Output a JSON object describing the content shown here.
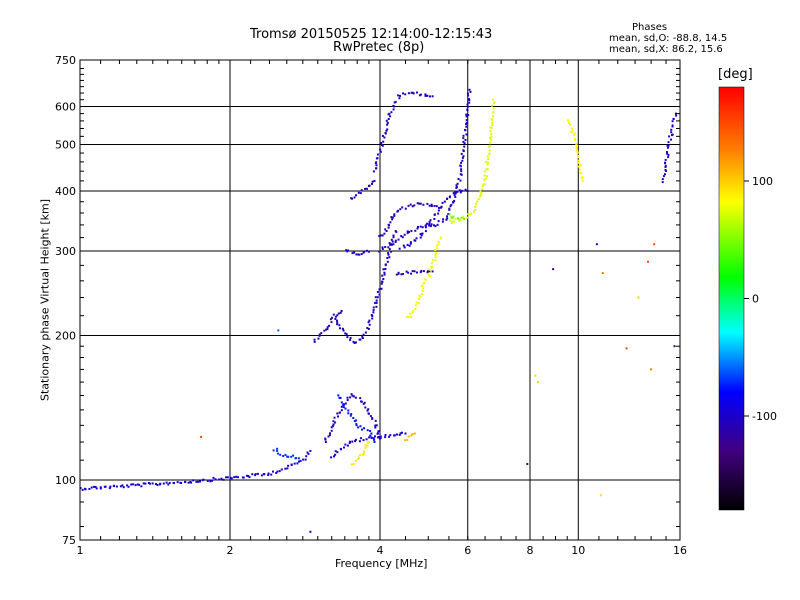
{
  "chart_data": {
    "type": "scatter",
    "title": "Tromsø 20150525 12:14:00-12:15:43",
    "subtitle": "RwPretec (8p)",
    "xlabel": "Frequency [MHz]",
    "ylabel": "Stationary phase Virtual Height [km]",
    "x_scale": "log",
    "y_scale": "log",
    "xlim": [
      1,
      16
    ],
    "ylim": [
      75,
      750
    ],
    "x_ticks": [
      1,
      2,
      4,
      6,
      8,
      10,
      16
    ],
    "y_ticks": [
      75,
      100,
      200,
      300,
      400,
      500,
      600,
      750
    ],
    "grid": true,
    "colorbar": {
      "label": "[deg]",
      "range": [
        -180,
        180
      ],
      "ticks": [
        100,
        0,
        -100
      ]
    },
    "phase_stats": {
      "heading": "Phases",
      "o_line": "mean, sd,O: -88.8, 14.5",
      "x_line": "mean, sd,X:  86.2, 15.6"
    },
    "traces": [
      {
        "x": [
          1.0,
          1.2,
          1.4,
          1.6,
          1.8,
          2.0,
          2.2,
          2.4,
          2.6,
          2.8,
          2.9
        ],
        "y": [
          96,
          97,
          98,
          99,
          100,
          101,
          102,
          103,
          106,
          110,
          115
        ],
        "phase": -95
      },
      {
        "x": [
          2.45,
          2.55,
          2.65,
          2.75
        ],
        "y": [
          116,
          113,
          112,
          111
        ],
        "phase": -70
      },
      {
        "x": [
          3.2,
          3.4,
          3.6,
          3.8,
          4.0,
          4.2,
          4.5
        ],
        "y": [
          112,
          118,
          121,
          122,
          123,
          124,
          125
        ],
        "phase": -100
      },
      {
        "x": [
          3.1,
          3.3,
          3.5,
          3.7,
          3.9,
          4.0
        ],
        "y": [
          120,
          138,
          150,
          146,
          132,
          122
        ],
        "phase": -105
      },
      {
        "x": [
          3.3,
          3.4,
          3.5,
          3.6,
          3.8,
          3.9
        ],
        "y": [
          150,
          142,
          136,
          130,
          126,
          120
        ],
        "phase": -75
      },
      {
        "x": [
          3.5,
          3.6,
          3.7,
          3.8
        ],
        "y": [
          108,
          110,
          114,
          120
        ],
        "phase": 90
      },
      {
        "x": [
          4.5,
          4.6,
          4.7
        ],
        "y": [
          121,
          123,
          125
        ],
        "phase": 105
      },
      {
        "x": [
          3.25,
          3.3,
          3.35,
          3.4,
          3.45,
          3.5,
          3.55,
          3.6,
          3.65,
          3.7,
          3.8,
          3.9,
          4.0,
          4.1,
          4.3
        ],
        "y": [
          220,
          212,
          206,
          202,
          198,
          196,
          194,
          194,
          196,
          200,
          210,
          228,
          252,
          280,
          330
        ],
        "phase": -105
      },
      {
        "x": [
          2.95,
          3.1,
          3.2,
          3.35
        ],
        "y": [
          195,
          205,
          215,
          225
        ],
        "phase": -110
      },
      {
        "x": [
          3.4,
          3.5,
          3.6,
          3.7,
          3.8
        ],
        "y": [
          300,
          298,
          296,
          297,
          299
        ],
        "phase": -100
      },
      {
        "x": [
          3.5,
          3.6,
          3.7,
          3.8,
          3.9
        ],
        "y": [
          385,
          392,
          400,
          408,
          420
        ],
        "phase": -105
      },
      {
        "x": [
          3.9,
          4.0,
          4.1,
          4.2,
          4.3,
          4.4,
          4.6,
          4.9,
          5.1
        ],
        "y": [
          440,
          480,
          530,
          580,
          610,
          635,
          640,
          635,
          630
        ],
        "phase": -105
      },
      {
        "x": [
          4.0,
          4.2,
          4.4,
          4.6,
          4.8,
          5.0,
          5.2,
          5.4,
          5.6,
          5.8,
          5.9,
          6.0,
          6.05
        ],
        "y": [
          300,
          310,
          320,
          330,
          335,
          338,
          340,
          350,
          380,
          430,
          500,
          600,
          650
        ],
        "phase": -105
      },
      {
        "x": [
          4.0,
          4.1,
          4.2,
          4.3,
          4.5,
          4.7,
          5.0,
          5.2
        ],
        "y": [
          320,
          330,
          345,
          360,
          370,
          375,
          375,
          372
        ],
        "phase": -110
      },
      {
        "x": [
          4.3,
          4.5,
          4.7,
          4.9,
          5.1
        ],
        "y": [
          268,
          270,
          271,
          272,
          272
        ],
        "phase": -105
      },
      {
        "x": [
          4.4,
          4.6,
          4.8,
          5.0,
          5.2,
          5.4,
          5.6,
          5.8,
          6.0
        ],
        "y": [
          305,
          310,
          320,
          340,
          360,
          380,
          395,
          400,
          400
        ],
        "phase": -100
      },
      {
        "x": [
          4.5,
          4.6,
          4.7,
          4.8,
          4.9,
          5.0,
          5.1,
          5.2,
          5.3
        ],
        "y": [
          218,
          220,
          228,
          240,
          255,
          265,
          280,
          300,
          320
        ],
        "phase": 80
      },
      {
        "x": [
          5.5,
          5.7,
          5.9,
          6.1,
          6.3,
          6.5,
          6.6,
          6.7,
          6.75
        ],
        "y": [
          345,
          348,
          352,
          360,
          380,
          420,
          480,
          550,
          620
        ],
        "phase": 75
      },
      {
        "x": [
          5.5,
          5.7,
          5.9
        ],
        "y": [
          355,
          352,
          350
        ],
        "phase": 45
      },
      {
        "x": [
          9.6,
          9.8,
          10.0,
          10.2
        ],
        "y": [
          560,
          520,
          470,
          420
        ],
        "phase": 85
      },
      {
        "x": [
          14.8,
          15.0,
          15.2,
          15.5,
          15.7
        ],
        "y": [
          420,
          460,
          500,
          550,
          580
        ],
        "phase": -100
      }
    ],
    "points": [
      {
        "x": 1.75,
        "y": 123,
        "phase": 150
      },
      {
        "x": 2.5,
        "y": 205,
        "phase": -60
      },
      {
        "x": 2.9,
        "y": 78,
        "phase": -95
      },
      {
        "x": 7.9,
        "y": 108,
        "phase": -130
      },
      {
        "x": 8.3,
        "y": 160,
        "phase": 95
      },
      {
        "x": 8.2,
        "y": 165,
        "phase": 95
      },
      {
        "x": 8.9,
        "y": 275,
        "phase": -130
      },
      {
        "x": 10.9,
        "y": 310,
        "phase": -100
      },
      {
        "x": 11.1,
        "y": 93,
        "phase": 95
      },
      {
        "x": 11.2,
        "y": 270,
        "phase": 130
      },
      {
        "x": 12.5,
        "y": 188,
        "phase": 150
      },
      {
        "x": 13.2,
        "y": 240,
        "phase": 100
      },
      {
        "x": 13.8,
        "y": 285,
        "phase": 150
      },
      {
        "x": 14.0,
        "y": 170,
        "phase": 130
      },
      {
        "x": 14.2,
        "y": 310,
        "phase": 150
      },
      {
        "x": 15.6,
        "y": 190,
        "phase": -120
      }
    ]
  }
}
